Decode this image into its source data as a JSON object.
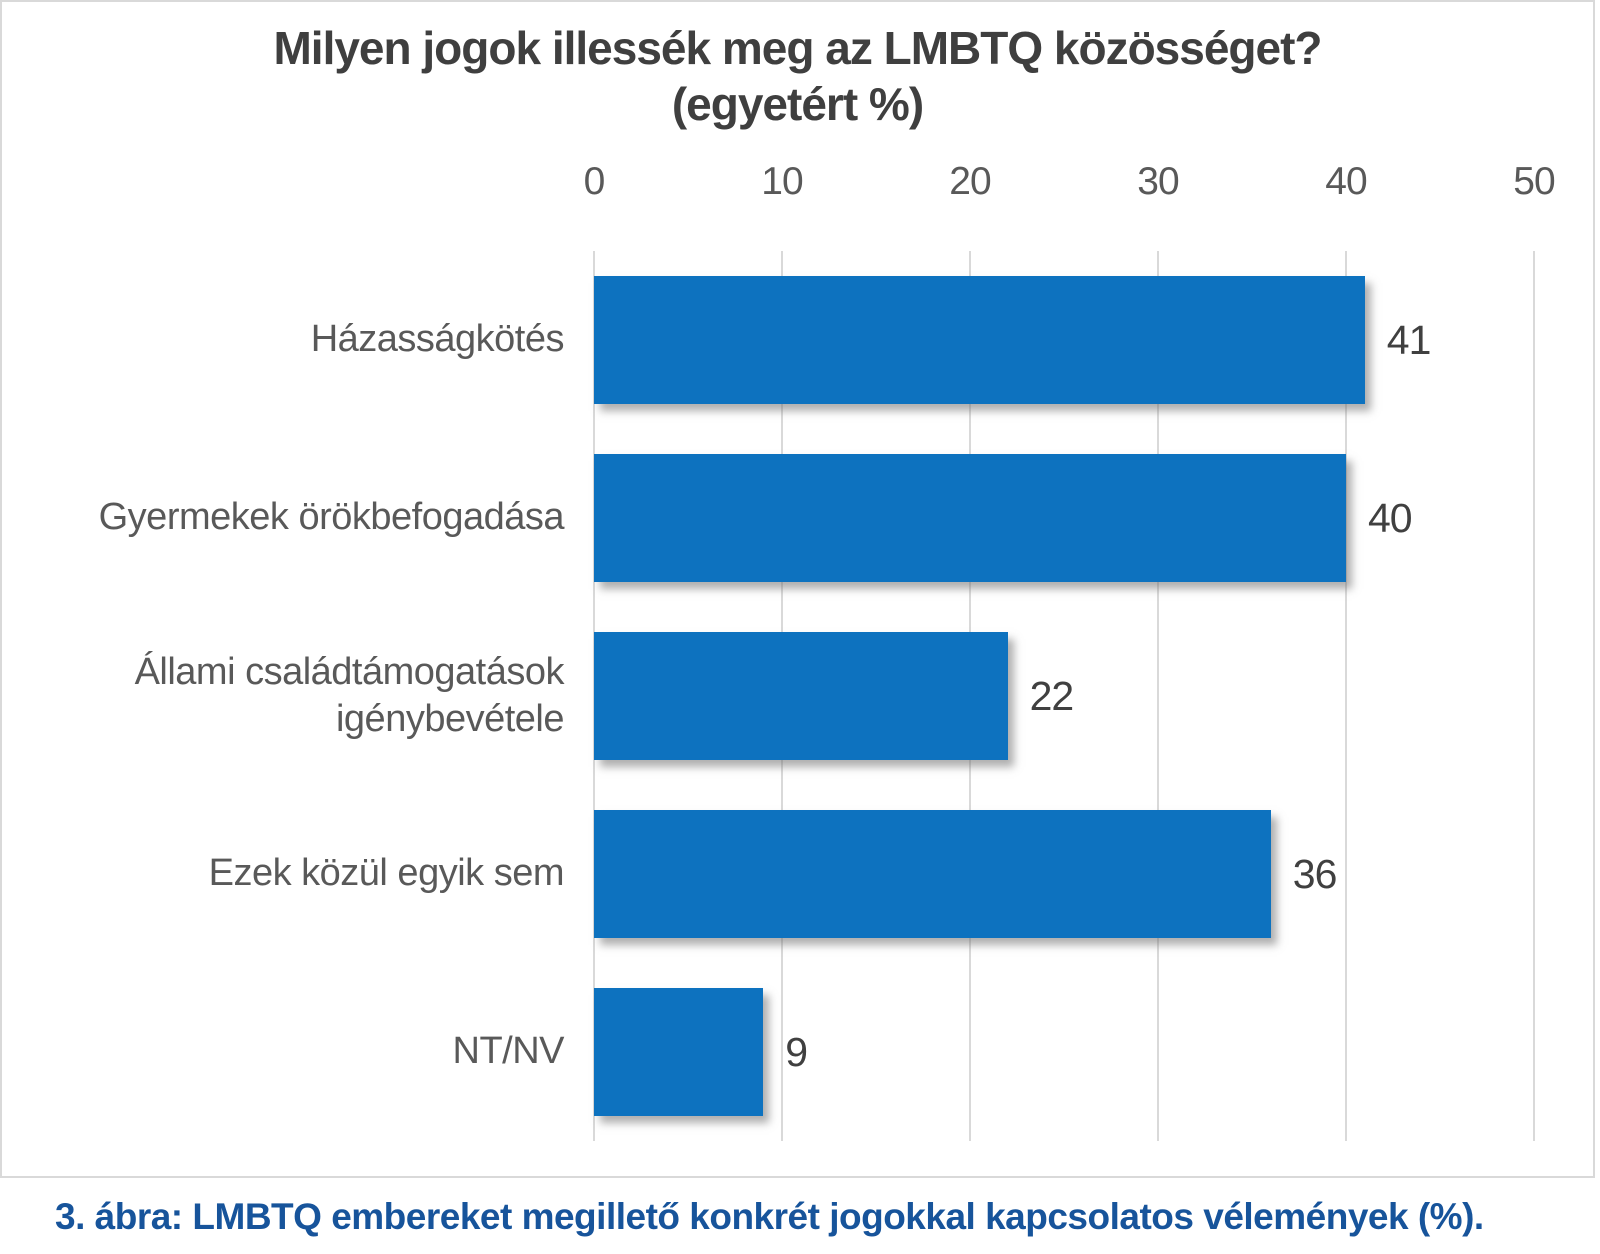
{
  "chart_data": {
    "type": "bar",
    "orientation": "horizontal",
    "title": "Milyen jogok illessék meg az LMBTQ közösséget? (egyetért %)",
    "title_line1": "Milyen jogok illessék meg az LMBTQ közösséget?",
    "title_line2": "(egyetért %)",
    "categories": [
      "Házasságkötés",
      "Gyermekek örökbefogadása",
      "Állami családtámogatások igénybevétele",
      "Ezek közül egyik sem",
      "NT/NV"
    ],
    "values": [
      41,
      40,
      22,
      36,
      9
    ],
    "xlim": [
      0,
      50
    ],
    "x_ticks": [
      0,
      10,
      20,
      30,
      40,
      50
    ],
    "xlabel": "",
    "ylabel": "",
    "grid": true,
    "legend": "none",
    "bar_color": "#0d72bf",
    "gridline_color": "#d9d9d9"
  },
  "caption": {
    "text": "3. ábra: LMBTQ embereket megillető konkrét jogokkal kapcsolatos vélemények (%)."
  },
  "colors": {
    "bar": "#0d72bf",
    "gridline": "#d9d9d9",
    "card_border": "#d9d9d9",
    "title_text": "#3f3f3f",
    "axis_text": "#595959",
    "value_text": "#404040",
    "caption_text": "#17549b"
  }
}
